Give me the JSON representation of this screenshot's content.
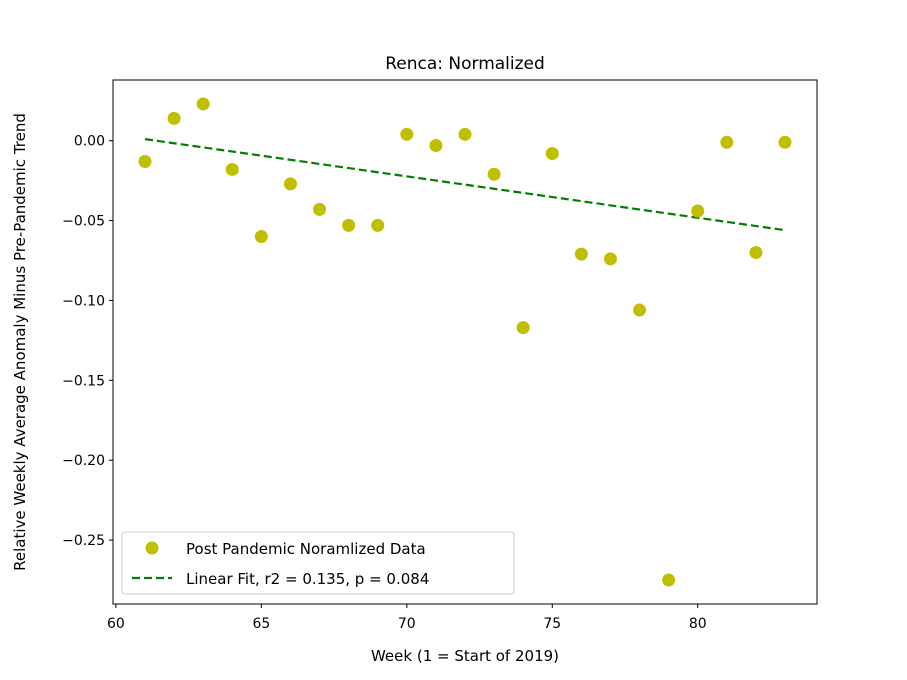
{
  "chart_data": {
    "type": "scatter",
    "title": "Renca: Normalized",
    "xlabel": "Week (1 = Start of 2019)",
    "ylabel": "Relative Weekly Average Anomaly Minus Pre-Pandemic Trend",
    "xlim": [
      59.9,
      84.1
    ],
    "ylim": [
      -0.29,
      0.038
    ],
    "x_ticks": [
      60,
      65,
      70,
      75,
      80
    ],
    "x_tick_labels": [
      "60",
      "65",
      "70",
      "75",
      "80"
    ],
    "y_ticks": [
      0.0,
      -0.05,
      -0.1,
      -0.15,
      -0.2,
      -0.25
    ],
    "y_tick_labels": [
      "0.00",
      "−0.05",
      "−0.10",
      "−0.15",
      "−0.20",
      "−0.25"
    ],
    "grid": false,
    "legend_position": "lower-left",
    "series": [
      {
        "name": "Post Pandemic Noramlized Data",
        "kind": "points",
        "color": "#bfbf00",
        "x": [
          61,
          62,
          63,
          64,
          65,
          66,
          67,
          68,
          69,
          70,
          71,
          72,
          73,
          74,
          75,
          76,
          77,
          78,
          79,
          80,
          81,
          82,
          83
        ],
        "y": [
          -0.013,
          0.014,
          0.023,
          -0.018,
          -0.06,
          -0.027,
          -0.043,
          -0.053,
          -0.053,
          0.004,
          -0.003,
          0.004,
          -0.021,
          -0.117,
          -0.008,
          -0.071,
          -0.074,
          -0.106,
          -0.275,
          -0.044,
          -0.001,
          -0.07,
          -0.001
        ]
      },
      {
        "name": "Linear Fit, r2 = 0.135, p = 0.084",
        "kind": "dashed-line",
        "color": "#008000",
        "x": [
          61,
          83
        ],
        "y": [
          0.001,
          -0.056
        ]
      }
    ]
  }
}
